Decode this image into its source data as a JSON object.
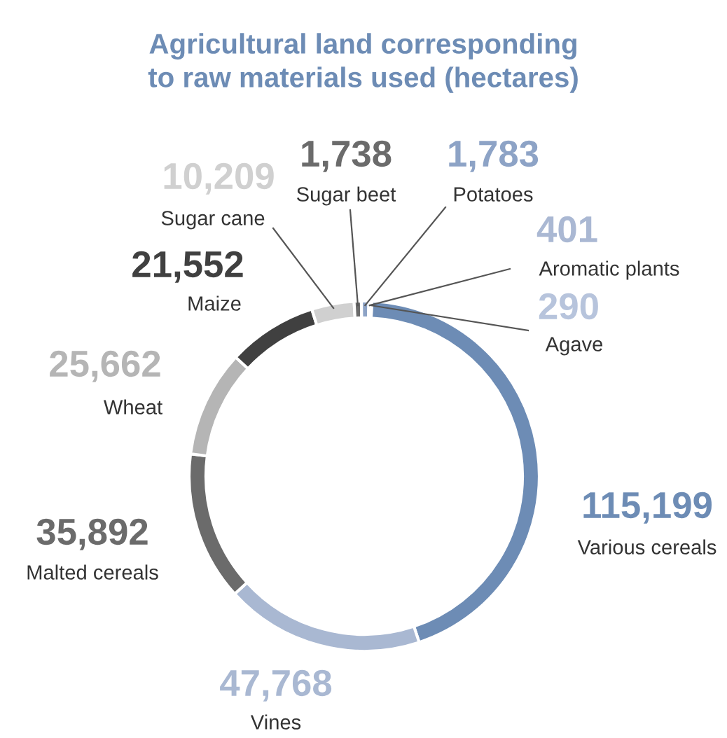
{
  "chart_data": {
    "type": "donut",
    "title": "Agricultural land corresponding\nto raw materials used (hectares)",
    "categories": [
      "Various cereals",
      "Vines",
      "Malted cereals",
      "Wheat",
      "Maize",
      "Sugar cane",
      "Sugar beet",
      "Potatoes",
      "Aromatic plants",
      "Agave"
    ],
    "values": [
      115199,
      47768,
      35892,
      25662,
      21552,
      10209,
      1738,
      1783,
      401,
      290
    ],
    "value_labels": [
      "115,199",
      "47,768",
      "35,892",
      "25,662",
      "21,552",
      "10,209",
      "1,738",
      "1,783",
      "401",
      "290"
    ],
    "colors": [
      "#6d8cb5",
      "#a9b8d2",
      "#6b6b6b",
      "#b5b5b5",
      "#404040",
      "#d0d0d0",
      "#6b6b6b",
      "#8da3c6",
      "#aab8d3",
      "#b7c4dc"
    ]
  }
}
